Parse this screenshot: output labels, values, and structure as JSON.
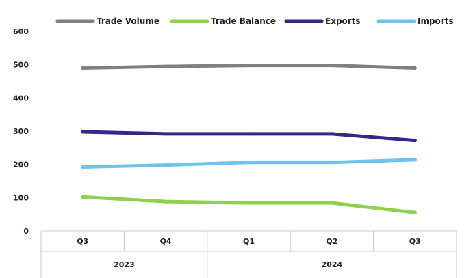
{
  "chart_data": {
    "type": "line",
    "categories": [
      "Q3",
      "Q4",
      "Q1",
      "Q2",
      "Q3"
    ],
    "category_groups": [
      {
        "label": "2023",
        "span": 2
      },
      {
        "label": "2024",
        "span": 3
      }
    ],
    "ylim": [
      0,
      600
    ],
    "yticks": [
      0,
      100,
      200,
      300,
      400,
      500,
      600
    ],
    "grid": false,
    "legend_position": "top",
    "series": [
      {
        "name": "Trade Volume",
        "color": "#808080",
        "values": [
          490,
          495,
          498,
          498,
          490
        ]
      },
      {
        "name": "Trade Balance",
        "color": "#8fd14f",
        "values": [
          102,
          88,
          84,
          84,
          55
        ]
      },
      {
        "name": "Exports",
        "color": "#2e2a8a",
        "values": [
          298,
          292,
          292,
          292,
          272
        ]
      },
      {
        "name": "Imports",
        "color": "#6ec4ee",
        "values": [
          192,
          198,
          206,
          206,
          214
        ]
      }
    ]
  }
}
